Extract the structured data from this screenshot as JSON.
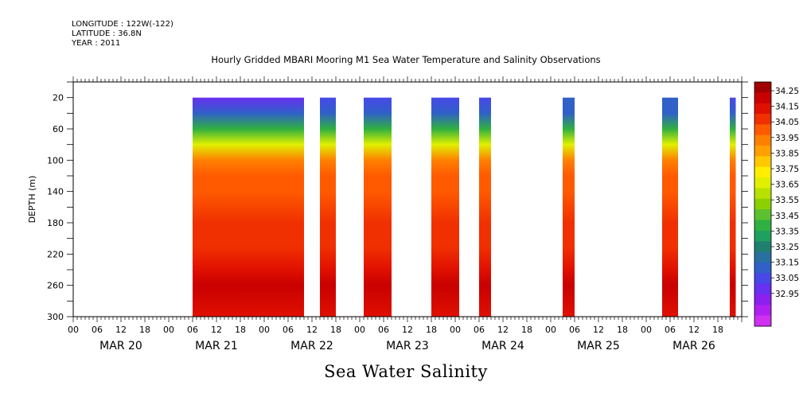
{
  "header": {
    "longitude": "LONGITUDE : 122W(-122)",
    "latitude": "LATITUDE : 36.8N",
    "year": "YEAR : 2011"
  },
  "chart_data": {
    "type": "heatmap",
    "title": "Hourly Gridded MBARI Mooring M1 Sea Water Temperature and Salinity Observations",
    "variable_label": "Sea Water Salinity",
    "ylabel": "DEPTH (m)",
    "y_axis_inverted": true,
    "ylim": [
      0,
      300
    ],
    "y_ticks": [
      "20",
      "60",
      "100",
      "140",
      "180",
      "220",
      "260",
      "300"
    ],
    "x_hour_ticks": [
      "00",
      "06",
      "12",
      "18",
      "00",
      "06",
      "12",
      "18",
      "00",
      "06",
      "12",
      "18",
      "00",
      "06",
      "12",
      "18",
      "00",
      "06",
      "12",
      "18",
      "00",
      "06",
      "12",
      "18",
      "00",
      "06",
      "12",
      "18"
    ],
    "x_day_labels": [
      "MAR 20",
      "MAR 21",
      "MAR 22",
      "MAR 23",
      "MAR 24",
      "MAR 25",
      "MAR 26"
    ],
    "colorbar": {
      "labels": [
        "34.25",
        "34.15",
        "34.05",
        "33.95",
        "33.85",
        "33.75",
        "33.65",
        "33.55",
        "33.45",
        "33.35",
        "33.25",
        "33.15",
        "33.05",
        "32.95"
      ],
      "colors": [
        "#a00000",
        "#c80000",
        "#e01000",
        "#f03000",
        "#ff5a00",
        "#ff8000",
        "#ffa000",
        "#ffc800",
        "#ffee00",
        "#e0f000",
        "#b8e000",
        "#8cd000",
        "#5cc030",
        "#30b040",
        "#20a060",
        "#208070",
        "#2870a0",
        "#3060c8",
        "#4848e8",
        "#6830f0",
        "#8c20f0",
        "#b020f0",
        "#d030f0"
      ]
    },
    "observation_segments_hours": [
      {
        "start": 30,
        "end": 58,
        "surface_min": 33.15
      },
      {
        "start": 62,
        "end": 66,
        "surface_min": 33.2
      },
      {
        "start": 73,
        "end": 80,
        "surface_min": 33.2
      },
      {
        "start": 90,
        "end": 97,
        "surface_min": 33.2
      },
      {
        "start": 102,
        "end": 105,
        "surface_min": 33.2
      },
      {
        "start": 123,
        "end": 126,
        "surface_min": 33.3
      },
      {
        "start": 148,
        "end": 152,
        "surface_min": 33.3
      },
      {
        "start": 165,
        "end": 166.5,
        "surface_min": 33.2
      }
    ],
    "depth_profile": [
      {
        "depth": 20,
        "salinity": 33.2
      },
      {
        "depth": 40,
        "salinity": 33.3
      },
      {
        "depth": 60,
        "salinity": 33.5
      },
      {
        "depth": 80,
        "salinity": 33.75
      },
      {
        "depth": 100,
        "salinity": 33.95
      },
      {
        "depth": 120,
        "salinity": 34.02
      },
      {
        "depth": 140,
        "salinity": 34.06
      },
      {
        "depth": 180,
        "salinity": 34.08
      },
      {
        "depth": 210,
        "salinity": 34.12
      },
      {
        "depth": 240,
        "salinity": 34.18
      },
      {
        "depth": 260,
        "salinity": 34.22
      },
      {
        "depth": 300,
        "salinity": 34.17
      }
    ]
  }
}
